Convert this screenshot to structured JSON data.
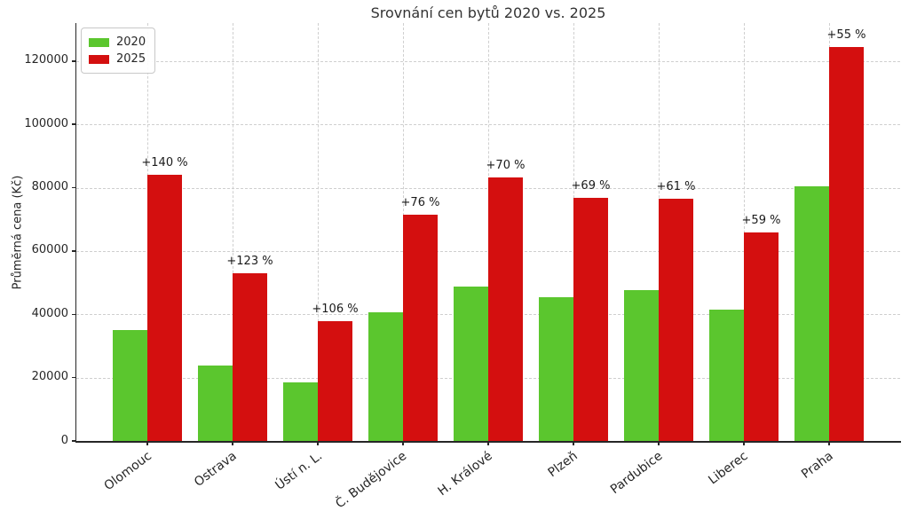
{
  "title": "Srovnání cen bytů 2020 vs. 2025",
  "chart_data": {
    "type": "bar",
    "title": "Srovnání cen bytů 2020 vs. 2025",
    "xlabel": "",
    "ylabel": "Průměrná cena (Kč)",
    "categories": [
      "Olomouc",
      "Ostrava",
      "Ústí n. L.",
      "Č. Budějovice",
      "H. Králové",
      "Plzeň",
      "Pardubice",
      "Liberec",
      "Praha"
    ],
    "series": [
      {
        "name": "2020",
        "color": "#5bc62e",
        "values": [
          35000,
          23700,
          18400,
          40700,
          48900,
          45500,
          47600,
          41400,
          80300
        ]
      },
      {
        "name": "2025",
        "color": "#d40f0f",
        "values": [
          84000,
          52900,
          37900,
          71600,
          83100,
          76900,
          76600,
          65800,
          124500
        ]
      }
    ],
    "pct_change_labels": [
      "+140 %",
      "+123 %",
      "+106 %",
      "+76 %",
      "+70 %",
      "+69 %",
      "+61 %",
      "+59 %",
      "+55 %"
    ],
    "yticks": [
      0,
      20000,
      40000,
      60000,
      80000,
      100000,
      120000
    ],
    "ytick_labels": [
      "0",
      "20000",
      "40000",
      "60000",
      "80000",
      "100000",
      "120000"
    ],
    "ylim": [
      0,
      132000
    ],
    "grid": true,
    "grid_color": "#cfcfcf",
    "spine_color": "#262626",
    "legend_position": "upper left",
    "legend": [
      "2020",
      "2025"
    ]
  }
}
